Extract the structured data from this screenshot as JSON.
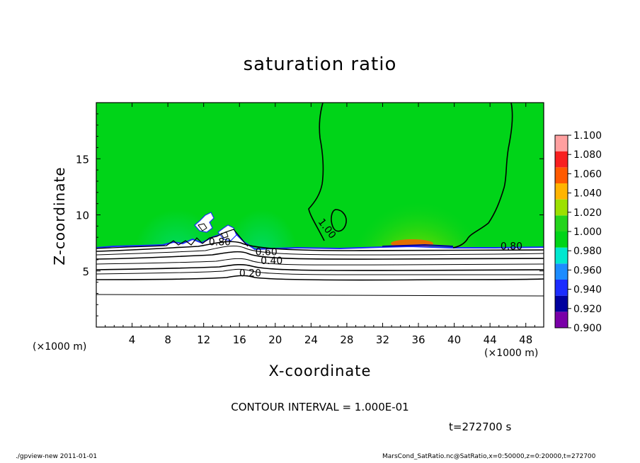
{
  "chart_data": {
    "type": "heatmap",
    "title": "saturation ratio",
    "xlabel": "X-coordinate",
    "ylabel": "Z-coordinate",
    "x_unit": "(×1000 m)",
    "x_unit_right": "(×1000 m)",
    "xlim": [
      0,
      50
    ],
    "ylim": [
      0,
      20
    ],
    "x_ticks": [
      4,
      8,
      12,
      16,
      20,
      24,
      28,
      32,
      36,
      40,
      44,
      48
    ],
    "y_ticks": [
      5,
      10,
      15
    ],
    "colorbar": {
      "levels": [
        0.9,
        0.92,
        0.94,
        0.96,
        0.98,
        1.0,
        1.02,
        1.04,
        1.06,
        1.08,
        1.1
      ],
      "labels": [
        "0.900",
        "0.920",
        "0.940",
        "0.960",
        "0.980",
        "1.000",
        "1.020",
        "1.040",
        "1.060",
        "1.080",
        "1.100"
      ],
      "colors": [
        "#7a00a8",
        "#00009e",
        "#1c2cff",
        "#1c8cff",
        "#00e8d0",
        "#00d418",
        "#24d41c",
        "#9ce000",
        "#ffb400",
        "#ff5a00",
        "#f82020",
        "#ffa0a0"
      ]
    },
    "contour_labels": [
      {
        "text": "1.00",
        "x": 25.5,
        "z": 8.6
      },
      {
        "text": "0.80",
        "x": 13.8,
        "z": 7.3
      },
      {
        "text": "0.80",
        "x": 46.4,
        "z": 6.9
      },
      {
        "text": "0.60",
        "x": 19.0,
        "z": 6.4
      },
      {
        "text": "0.40",
        "x": 19.6,
        "z": 5.6
      },
      {
        "text": "0.20",
        "x": 17.2,
        "z": 4.5
      }
    ],
    "contour_interval": "CONTOUR INTERVAL = 1.000E-01",
    "time": "t=272700 s"
  },
  "footer": {
    "left": "./gpview-new   2011-01-01",
    "right": "MarsCond_SatRatio.nc@SatRatio,x=0:50000,z=0:20000,t=272700"
  }
}
